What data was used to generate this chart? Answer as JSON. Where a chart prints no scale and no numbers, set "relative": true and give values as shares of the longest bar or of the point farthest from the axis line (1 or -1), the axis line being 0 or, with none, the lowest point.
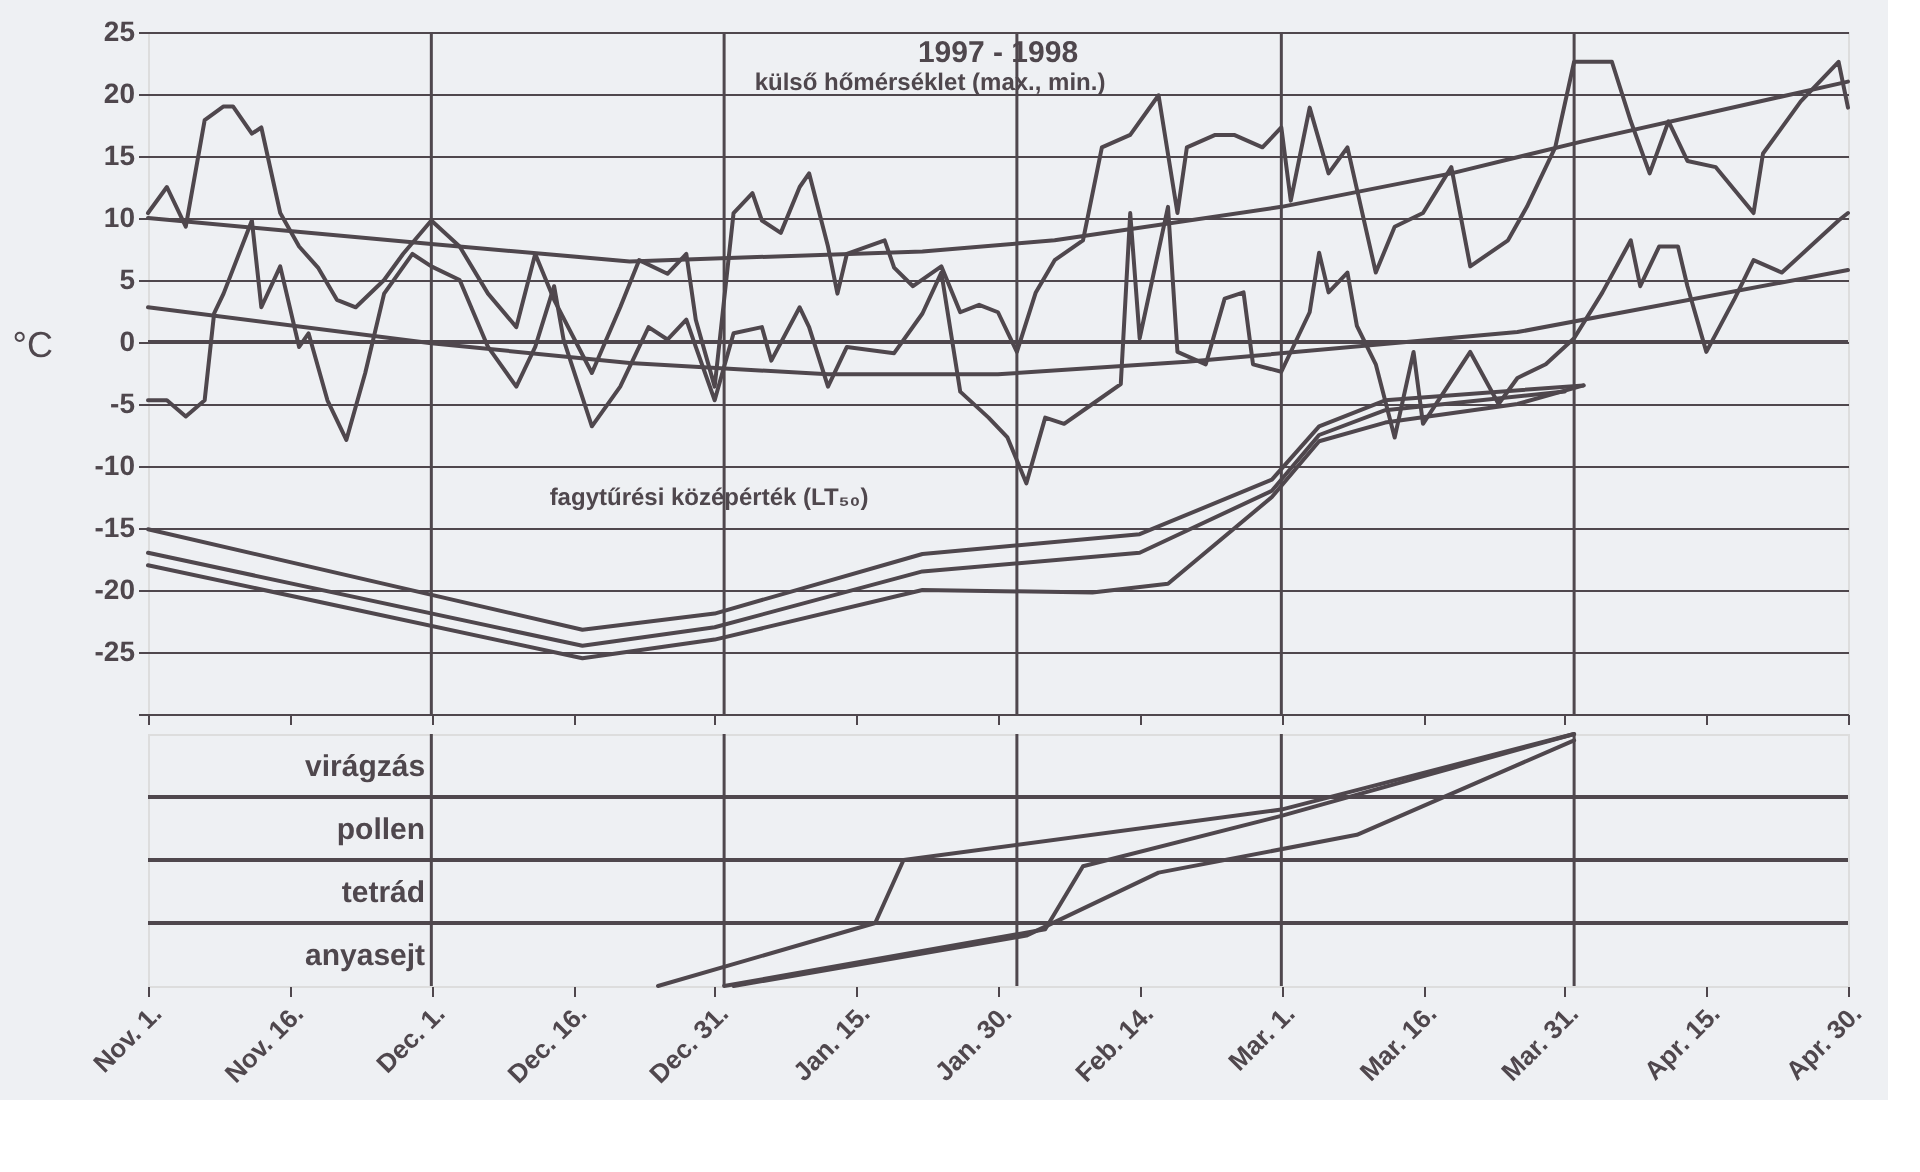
{
  "chart_data": [
    {
      "type": "line",
      "title": "1997 - 1998",
      "ylabel": "°C",
      "annotations": [
        "külső hőmérséklet (max., min.)",
        "fagytűrési középérték (LT₅₀)"
      ],
      "xlim": [
        "1997-11-01",
        "1998-04-30"
      ],
      "xticks": [
        {
          "value": "1997-11-01",
          "label": null
        },
        {
          "value": "1997-11-16",
          "label": null
        },
        {
          "value": "1997-12-01",
          "label": null
        },
        {
          "value": "1997-12-16",
          "label": null
        },
        {
          "value": "1997-12-31",
          "label": null
        },
        {
          "value": "1998-01-15",
          "label": null
        },
        {
          "value": "1998-01-30",
          "label": null
        },
        {
          "value": "1998-02-14",
          "label": null
        },
        {
          "value": "1998-03-01",
          "label": null
        },
        {
          "value": "1998-03-16",
          "label": null
        },
        {
          "value": "1998-03-31",
          "label": null
        },
        {
          "value": "1998-04-15",
          "label": null
        },
        {
          "value": "1998-04-30",
          "label": null
        }
      ],
      "ylim": [
        -30,
        25
      ],
      "yticks": [
        {
          "value": -30,
          "label": null
        },
        -25,
        -20,
        -15,
        -10,
        -5,
        0,
        5,
        10,
        15,
        20,
        25
      ],
      "grid": "y",
      "tick_labels": "y",
      "ref_lines": [
        {
          "axis": "y",
          "value": 0,
          "color": "#4f474d"
        },
        {
          "axis": "x",
          "value": "1997-12-01",
          "color": "#4f474d"
        },
        {
          "axis": "x",
          "value": "1998-01-01",
          "color": "#4f474d"
        },
        {
          "axis": "x",
          "value": "1998-02-01",
          "color": "#4f474d"
        },
        {
          "axis": "x",
          "value": "1998-03-01",
          "color": "#4f474d"
        },
        {
          "axis": "x",
          "value": "1998-04-01",
          "color": "#4f474d"
        }
      ],
      "series": [
        {
          "color": "#4f474d",
          "x": [
            "1997-11-01",
            "1997-11-03",
            "1997-11-05",
            "1997-11-07",
            "1997-11-09",
            "1997-11-10",
            "1997-11-12",
            "1997-11-13",
            "1997-11-15",
            "1997-11-17",
            "1997-11-19",
            "1997-11-21",
            "1997-11-23",
            "1997-11-26",
            "1997-11-28",
            "1997-12-01",
            "1997-12-04",
            "1997-12-07",
            "1997-12-10",
            "1997-12-12",
            "1997-12-14",
            "1997-12-18",
            "1997-12-21",
            "1997-12-23",
            "1997-12-26",
            "1997-12-28",
            "1997-12-29",
            "1997-12-31",
            "1998-01-02",
            "1998-01-04",
            "1998-01-05",
            "1998-01-07",
            "1998-01-09",
            "1998-01-10",
            "1998-01-12",
            "1998-01-13",
            "1998-01-14",
            "1998-01-18",
            "1998-01-19",
            "1998-01-21",
            "1998-01-24",
            "1998-01-26",
            "1998-01-28",
            "1998-01-30",
            "1998-02-01",
            "1998-02-03",
            "1998-02-05",
            "1998-02-08",
            "1998-02-10",
            "1998-02-13",
            "1998-02-16",
            "1998-02-18",
            "1998-02-19",
            "1998-02-22",
            "1998-02-24",
            "1998-02-27",
            "1998-03-01",
            "1998-03-02",
            "1998-03-04",
            "1998-03-06",
            "1998-03-08",
            "1998-03-11",
            "1998-03-13",
            "1998-03-16",
            "1998-03-19",
            "1998-03-21",
            "1998-03-25",
            "1998-03-27",
            "1998-03-30",
            "1998-04-01",
            "1998-04-05",
            "1998-04-07",
            "1998-04-09",
            "1998-04-11",
            "1998-04-13",
            "1998-04-16",
            "1998-04-20",
            "1998-04-21",
            "1998-04-25",
            "1998-04-29",
            "1998-04-30"
          ],
          "values": [
            10.4,
            12.5,
            9.3,
            17.9,
            19,
            19,
            16.8,
            17.3,
            10.4,
            7.7,
            6,
            3.4,
            2.8,
            5,
            7.1,
            9.8,
            7.7,
            3.9,
            1.2,
            7.1,
            3.4,
            -2.5,
            2.8,
            6.6,
            5.5,
            7.1,
            1.8,
            -3.6,
            10.4,
            12,
            9.8,
            8.8,
            12.5,
            13.6,
            7.7,
            3.9,
            7.1,
            8.2,
            6,
            4.5,
            6.1,
            2.4,
            3,
            2.4,
            -0.8,
            4,
            6.6,
            8.2,
            15.7,
            16.7,
            19.9,
            10.4,
            15.7,
            16.7,
            16.7,
            15.7,
            17.3,
            11.4,
            18.9,
            13.6,
            15.7,
            5.6,
            9.3,
            10.4,
            14.1,
            6.1,
            8.2,
            10.9,
            15.7,
            22.6,
            22.6,
            17.8,
            13.6,
            17.8,
            14.6,
            14.1,
            10.4,
            15.2,
            19.4,
            22.6,
            18.9
          ]
        },
        {
          "color": "#4f474d",
          "x": [
            "1997-11-01",
            "1997-11-03",
            "1997-11-05",
            "1997-11-07",
            "1997-11-08",
            "1997-11-09",
            "1997-11-12",
            "1997-11-13",
            "1997-11-15",
            "1997-11-17",
            "1997-11-18",
            "1997-11-20",
            "1997-11-22",
            "1997-11-24",
            "1997-11-26",
            "1997-11-29",
            "1997-12-01",
            "1997-12-04",
            "1997-12-07",
            "1997-12-10",
            "1997-12-12",
            "1997-12-14",
            "1997-12-15",
            "1997-12-18",
            "1997-12-21",
            "1997-12-24",
            "1997-12-26",
            "1997-12-28",
            "1997-12-29",
            "1997-12-31",
            "1998-01-02",
            "1998-01-05",
            "1998-01-06",
            "1998-01-09",
            "1998-01-10",
            "1998-01-12",
            "1998-01-14",
            "1998-01-19",
            "1998-01-22",
            "1998-01-24",
            "1998-01-26",
            "1998-01-29",
            "1998-01-31",
            "1998-02-02",
            "1998-02-04",
            "1998-02-06",
            "1998-02-09",
            "1998-02-12",
            "1998-02-13",
            "1998-02-14",
            "1998-02-17",
            "1998-02-18",
            "1998-02-21",
            "1998-02-23",
            "1998-02-25",
            "1998-02-26",
            "1998-03-01",
            "1998-03-04",
            "1998-03-05",
            "1998-03-06",
            "1998-03-08",
            "1998-03-09",
            "1998-03-11",
            "1998-03-13",
            "1998-03-15",
            "1998-03-16",
            "1998-03-21",
            "1998-03-24",
            "1998-03-26",
            "1998-03-29",
            "1998-04-01",
            "1998-04-04",
            "1998-04-07",
            "1998-04-08",
            "1998-04-10",
            "1998-04-12",
            "1998-04-13",
            "1998-04-15",
            "1998-04-18",
            "1998-04-20",
            "1998-04-23",
            "1998-04-26",
            "1998-04-29",
            "1998-04-30"
          ],
          "values": [
            -4.7,
            -4.7,
            -6,
            -4.7,
            2.3,
            3.9,
            9.8,
            2.8,
            6.1,
            -0.4,
            0.7,
            -4.7,
            -7.9,
            -2.5,
            3.9,
            7.1,
            6.1,
            5,
            -0.4,
            -3.6,
            -0.4,
            4.5,
            0.2,
            -6.8,
            -3.6,
            1.2,
            0.2,
            1.8,
            -0.4,
            -4.7,
            0.7,
            1.2,
            -1.5,
            2.8,
            1.2,
            -3.6,
            -0.4,
            -0.9,
            2.3,
            5.6,
            -4,
            -6.1,
            -7.7,
            -11.4,
            -6.1,
            -6.6,
            -5,
            -3.4,
            10.4,
            0.3,
            10.9,
            -0.8,
            -1.8,
            3.5,
            4,
            -1.8,
            -2.4,
            2.4,
            7.2,
            4,
            5.6,
            1.3,
            -1.8,
            -7.7,
            -0.8,
            -6.6,
            -0.8,
            -5,
            -2.9,
            -1.8,
            0.3,
            4,
            8.2,
            4.5,
            7.7,
            7.7,
            4.5,
            -0.8,
            3.5,
            6.6,
            5.6,
            7.7,
            9.8,
            10.4
          ]
        },
        {
          "color": "#4f474d",
          "x": [
            "1997-11-01",
            "1997-12-01",
            "1997-12-22",
            "1998-01-22",
            "1998-02-05",
            "1998-03-01",
            "1998-03-19",
            "1998-04-02",
            "1998-04-30"
          ],
          "values": [
            10,
            7.9,
            6.5,
            7.3,
            8.2,
            10.9,
            13.6,
            16.2,
            21
          ]
        },
        {
          "color": "#4f474d",
          "x": [
            "1997-11-01",
            "1997-12-01",
            "1997-12-22",
            "1998-01-12",
            "1998-01-30",
            "1998-02-19",
            "1998-03-26",
            "1998-04-30"
          ],
          "values": [
            2.8,
            -0.1,
            -1.7,
            -2.6,
            -2.6,
            -1.6,
            0.8,
            5.8
          ]
        },
        {
          "color": "#4f474d",
          "x": [
            "1997-11-01",
            "1997-12-17",
            "1997-12-31",
            "1998-01-22",
            "1998-02-14",
            "1998-02-28",
            "1998-03-05",
            "1998-03-12",
            "1998-04-02"
          ],
          "values": [
            -15.1,
            -23.2,
            -21.9,
            -17.1,
            -15.5,
            -11.1,
            -6.8,
            -4.7,
            -3.5
          ]
        },
        {
          "color": "#4f474d",
          "x": [
            "1997-11-01",
            "1997-12-17",
            "1997-12-31",
            "1998-01-22",
            "1998-02-14",
            "1998-02-28",
            "1998-03-05",
            "1998-03-12",
            "1998-03-31"
          ],
          "values": [
            -17,
            -24.5,
            -23,
            -18.5,
            -17,
            -12,
            -7.5,
            -5.5,
            -4
          ]
        },
        {
          "color": "#4f474d",
          "x": [
            "1997-11-01",
            "1997-12-17",
            "1997-12-31",
            "1998-01-22",
            "1998-02-09",
            "1998-02-17",
            "1998-02-28",
            "1998-03-05",
            "1998-03-12",
            "1998-03-26",
            "1998-04-02"
          ],
          "values": [
            -18,
            -25.5,
            -24,
            -20,
            -20.2,
            -19.5,
            -12.5,
            -8,
            -6.5,
            -5,
            -3.5
          ]
        }
      ]
    },
    {
      "type": "line",
      "xlim": [
        "1997-11-01",
        "1998-04-30"
      ],
      "xticks": [
        {
          "value": "1997-11-01",
          "label": "Nov. 1."
        },
        {
          "value": "1997-11-16",
          "label": "Nov. 16."
        },
        {
          "value": "1997-12-01",
          "label": "Dec. 1."
        },
        {
          "value": "1997-12-16",
          "label": "Dec. 16."
        },
        {
          "value": "1997-12-31",
          "label": "Dec. 31."
        },
        {
          "value": "1998-01-15",
          "label": "Jan. 15."
        },
        {
          "value": "1998-01-30",
          "label": "Jan. 30."
        },
        {
          "value": "1998-02-14",
          "label": "Feb. 14."
        },
        {
          "value": "1998-03-01",
          "label": "Mar. 1."
        },
        {
          "value": "1998-03-16",
          "label": "Mar. 16."
        },
        {
          "value": "1998-03-31",
          "label": "Mar. 31."
        },
        {
          "value": "1998-04-15",
          "label": "Apr. 15."
        },
        {
          "value": "1998-04-30",
          "label": "Apr. 30."
        }
      ],
      "relative": true,
      "tick_labels": "x",
      "annotations": [
        "virágzás",
        "pollen",
        "tetrád",
        "anyasejt"
      ],
      "ref_lines": [
        {
          "axis": "y",
          "value": 0.25,
          "color": "#4f474d"
        },
        {
          "axis": "y",
          "value": 0.5,
          "color": "#4f474d"
        },
        {
          "axis": "y",
          "value": 0.75,
          "color": "#4f474d"
        },
        {
          "axis": "x",
          "value": "1997-12-01",
          "color": "#4f474d"
        },
        {
          "axis": "x",
          "value": "1998-01-01",
          "color": "#4f474d"
        },
        {
          "axis": "x",
          "value": "1998-02-01",
          "color": "#4f474d"
        },
        {
          "axis": "x",
          "value": "1998-03-01",
          "color": "#4f474d"
        },
        {
          "axis": "x",
          "value": "1998-04-01",
          "color": "#4f474d"
        }
      ],
      "series": [
        {
          "color": "#4f474d",
          "x": [
            "1997-12-25",
            "1998-01-17",
            "1998-01-20",
            "1998-03-01",
            "1998-04-01"
          ],
          "values": [
            0,
            0.25,
            0.5,
            0.7,
            1
          ]
        },
        {
          "color": "#4f474d",
          "x": [
            "1998-01-01",
            "1998-02-04",
            "1998-02-08",
            "1998-03-01",
            "1998-04-01"
          ],
          "values": [
            0,
            0.225,
            0.475,
            0.675,
            1
          ]
        },
        {
          "color": "#4f474d",
          "x": [
            "1998-01-02",
            "1998-02-02",
            "1998-02-16",
            "1998-03-09",
            "1998-04-01"
          ],
          "values": [
            0,
            0.2,
            0.45,
            0.6,
            0.975
          ]
        }
      ]
    }
  ]
}
